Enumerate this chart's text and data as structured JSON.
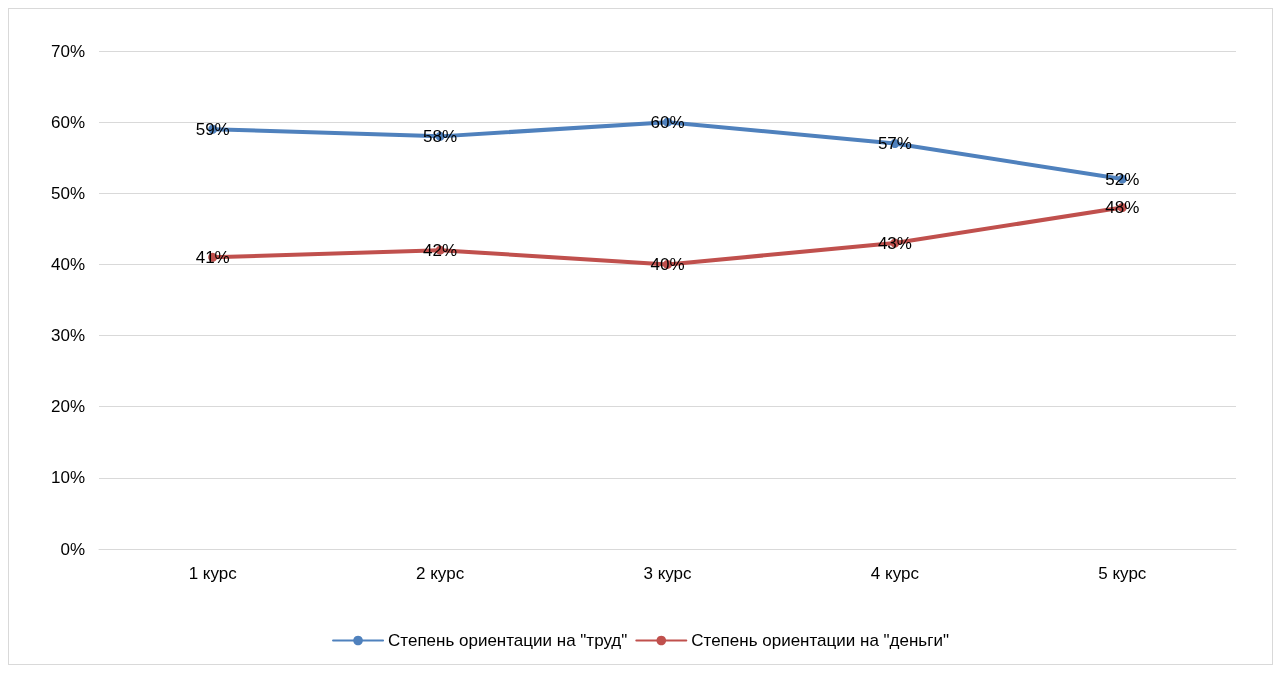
{
  "chart_data": {
    "type": "line",
    "categories": [
      "1 курс",
      "2 курс",
      "3 курс",
      "4 курс",
      "5 курс"
    ],
    "series": [
      {
        "name": "Степень ориентации на \"труд\"",
        "color": "#4f81bd",
        "values": [
          59,
          58,
          60,
          57,
          52
        ],
        "value_labels": [
          "59%",
          "58%",
          "60%",
          "57%",
          "52%"
        ]
      },
      {
        "name": "Степень ориентации на \"деньги\"",
        "color": "#c0504d",
        "values": [
          41,
          42,
          40,
          43,
          48
        ],
        "value_labels": [
          "41%",
          "42%",
          "40%",
          "43%",
          "48%"
        ]
      }
    ],
    "ylim": [
      0,
      70
    ],
    "yticks": [
      {
        "value": 0,
        "label": "0%"
      },
      {
        "value": 10,
        "label": "10%"
      },
      {
        "value": 20,
        "label": "20%"
      },
      {
        "value": 30,
        "label": "30%"
      },
      {
        "value": 40,
        "label": "40%"
      },
      {
        "value": 50,
        "label": "50%"
      },
      {
        "value": 60,
        "label": "60%"
      },
      {
        "value": 70,
        "label": "70%"
      }
    ],
    "grid": "y",
    "legend": "bottom",
    "marker": "circle",
    "line_style": "solid"
  }
}
